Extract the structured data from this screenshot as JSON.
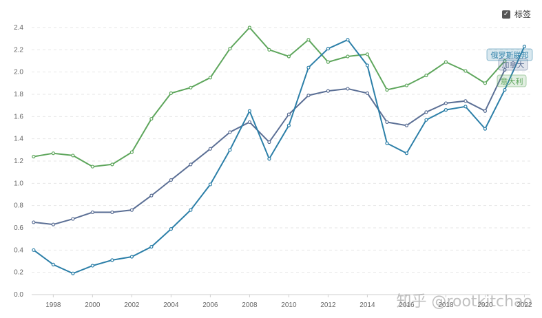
{
  "toggle": {
    "label": "标签",
    "checked": true,
    "icon": "check-icon"
  },
  "watermark": "知乎 @rootkitchao",
  "chart_data": {
    "type": "line",
    "x": [
      1997,
      1998,
      1999,
      2000,
      2001,
      2002,
      2003,
      2004,
      2005,
      2006,
      2007,
      2008,
      2009,
      2010,
      2011,
      2012,
      2013,
      2014,
      2015,
      2016,
      2017,
      2018,
      2019,
      2020,
      2021,
      2022
    ],
    "xticks": [
      "1998",
      "2000",
      "2002",
      "2004",
      "2006",
      "2008",
      "2010",
      "2012",
      "2014",
      "2016",
      "2018",
      "2020",
      "2022"
    ],
    "yticks": [
      "0.0",
      "0.2",
      "0.4",
      "0.6",
      "0.8",
      "1.0",
      "1.2",
      "1.4",
      "1.6",
      "1.8",
      "2.0",
      "2.2",
      "2.4"
    ],
    "xlim": [
      1996.9,
      2022.3
    ],
    "ylim": [
      0,
      2.4
    ],
    "grid": true,
    "series": [
      {
        "name": "意大利",
        "color": "#5ea65c",
        "values": [
          1.24,
          1.27,
          1.25,
          1.15,
          1.17,
          1.28,
          1.58,
          1.81,
          1.86,
          1.95,
          2.21,
          2.4,
          2.2,
          2.14,
          2.29,
          2.09,
          2.14,
          2.16,
          1.84,
          1.88,
          1.97,
          2.09,
          2.01,
          1.9,
          2.1,
          null
        ]
      },
      {
        "name": "加拿大",
        "color": "#5b6f95",
        "values": [
          0.65,
          0.63,
          0.68,
          0.74,
          0.74,
          0.76,
          0.89,
          1.03,
          1.17,
          1.31,
          1.46,
          1.55,
          1.37,
          1.62,
          1.79,
          1.83,
          1.85,
          1.81,
          1.55,
          1.52,
          1.64,
          1.72,
          1.74,
          1.65,
          2.02,
          null
        ]
      },
      {
        "name": "俄罗斯联邦",
        "color": "#2c7fa8",
        "values": [
          0.4,
          0.27,
          0.19,
          0.26,
          0.31,
          0.34,
          0.43,
          0.59,
          0.76,
          0.99,
          1.3,
          1.65,
          1.22,
          1.52,
          2.04,
          2.21,
          2.29,
          2.06,
          1.36,
          1.27,
          1.57,
          1.66,
          1.69,
          1.49,
          1.84,
          2.23
        ]
      }
    ]
  }
}
